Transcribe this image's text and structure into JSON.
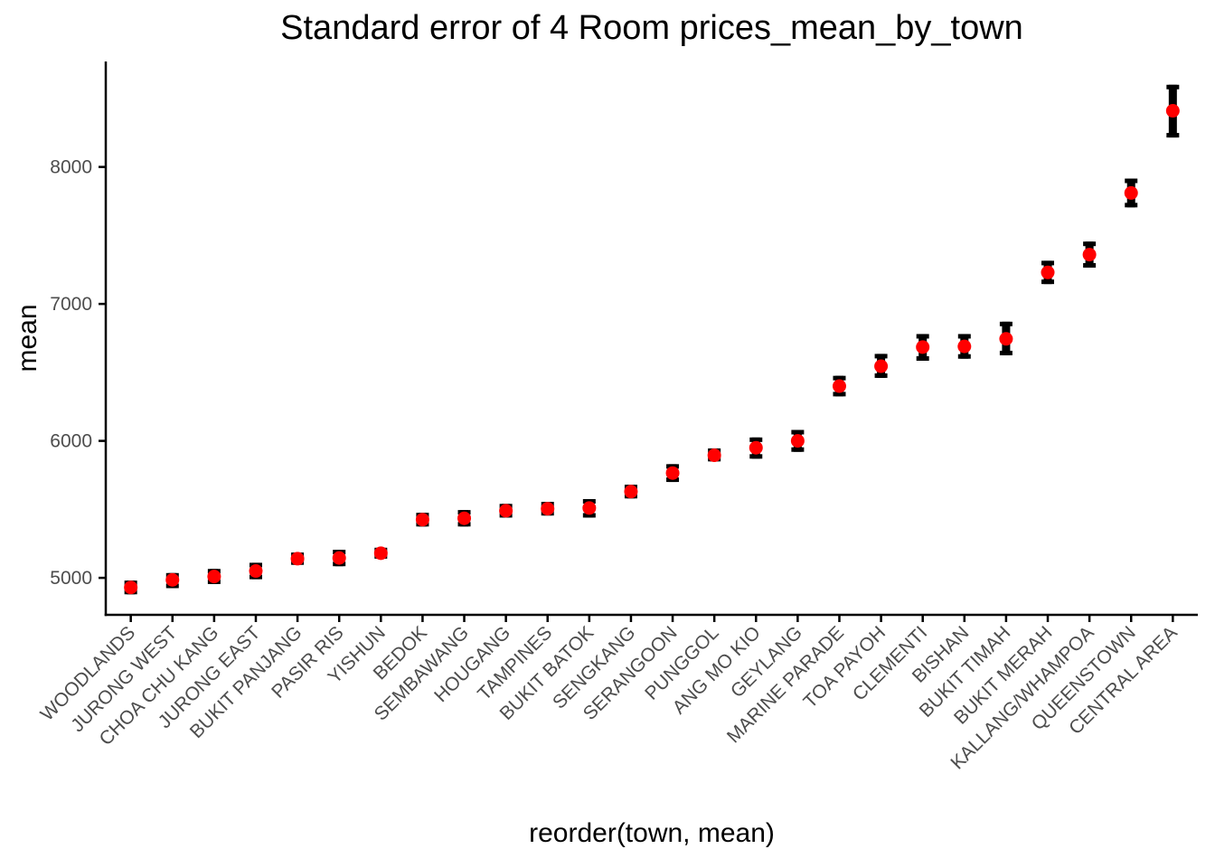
{
  "figure": {
    "title": "Standard error of 4 Room prices_mean_by_town",
    "x_axis_title": "reorder(town, mean)",
    "y_axis_title": "mean"
  },
  "colors": {
    "background": "#FFFFFF",
    "point": "#FF0000",
    "error_bar": "#000000",
    "axis_line": "#000000",
    "tick_label": "#4D4D4D",
    "title_text": "#000000"
  },
  "chart_data": {
    "type": "scatter",
    "mark": "point-with-standard-error-bar",
    "title": "Standard error of 4 Room prices_mean_by_town",
    "xlabel": "reorder(town, mean)",
    "ylabel": "mean",
    "ylim": [
      4730,
      8770
    ],
    "y_ticks": [
      5000,
      6000,
      7000,
      8000
    ],
    "x_tick_angle": 45,
    "grid": false,
    "legend": false,
    "categories": [
      "WOODLANDS",
      "JURONG WEST",
      "CHOA CHU KANG",
      "JURONG EAST",
      "BUKIT PANJANG",
      "PASIR RIS",
      "YISHUN",
      "BEDOK",
      "SEMBAWANG",
      "HOUGANG",
      "TAMPINES",
      "BUKIT BATOK",
      "SENGKANG",
      "SERANGOON",
      "PUNGGOL",
      "ANG MO KIO",
      "GEYLANG",
      "MARINE PARADE",
      "TOA PAYOH",
      "CLEMENTI",
      "BISHAN",
      "BUKIT TIMAH",
      "BUKIT MERAH",
      "KALLANG/WHAMPOA",
      "QUEENSTOWN",
      "CENTRAL AREA"
    ],
    "series": [
      {
        "name": "mean",
        "values": [
          4930,
          4985,
          5010,
          5050,
          5140,
          5145,
          5180,
          5425,
          5435,
          5490,
          5505,
          5510,
          5630,
          5765,
          5895,
          5950,
          6000,
          6400,
          6545,
          6685,
          6690,
          6745,
          7230,
          7360,
          7810,
          8410
        ]
      },
      {
        "name": "lower (mean - se)",
        "values": [
          4880,
          4925,
          4955,
          4990,
          5095,
          5085,
          5140,
          5375,
          5375,
          5440,
          5455,
          5440,
          5580,
          5700,
          5850,
          5870,
          5920,
          6325,
          6460,
          6585,
          6600,
          6625,
          7145,
          7265,
          7705,
          8215
        ]
      },
      {
        "name": "upper (mean + se)",
        "values": [
          4980,
          5035,
          5065,
          5110,
          5185,
          5205,
          5220,
          5475,
          5495,
          5540,
          5555,
          5575,
          5680,
          5830,
          5945,
          6025,
          6080,
          6475,
          6635,
          6780,
          6780,
          6870,
          7315,
          7455,
          7915,
          8600
        ]
      }
    ]
  }
}
